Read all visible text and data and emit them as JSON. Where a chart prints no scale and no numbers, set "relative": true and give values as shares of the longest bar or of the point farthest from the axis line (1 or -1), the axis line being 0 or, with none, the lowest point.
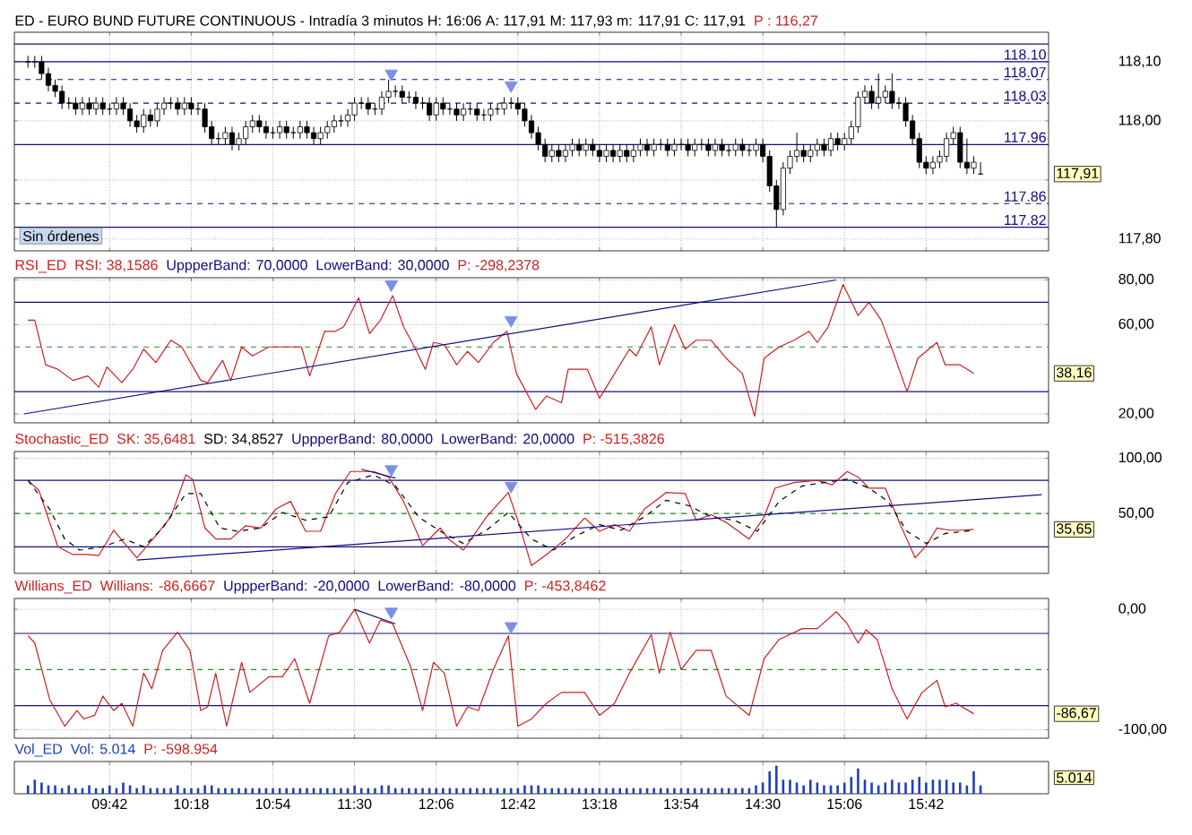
{
  "chart_data": [
    {
      "type": "candlestick",
      "title": "ED - EURO BUND FUTURE CONTINUOUS - Intradía 3 minutos  H: 16:06  A: 117,91  M: 117,93  m: 117,91  C: 117,91",
      "annotations": [
        "P : 116,27",
        "117,91",
        "Sin órdenes"
      ],
      "xlim": [
        9.0,
        16.6
      ],
      "xticks": [
        {
          "value": 9.7,
          "label": null
        },
        {
          "value": 10.3,
          "label": null
        },
        {
          "value": 10.9,
          "label": null
        },
        {
          "value": 11.5,
          "label": null
        },
        {
          "value": 12.1,
          "label": null
        },
        {
          "value": 12.7,
          "label": null
        },
        {
          "value": 13.3,
          "label": null
        },
        {
          "value": 13.9,
          "label": null
        },
        {
          "value": 14.5,
          "label": null
        },
        {
          "value": 15.1,
          "label": null
        },
        {
          "value": 15.7,
          "label": null
        }
      ],
      "ylim": [
        117.78,
        118.15
      ],
      "yticks": [
        {
          "value": 118.1,
          "label": "118,10"
        },
        {
          "value": 118.0,
          "label": "118,00"
        },
        {
          "value": 117.9,
          "label": null
        },
        {
          "value": 117.8,
          "label": "117,80"
        }
      ],
      "tick_labels": "y",
      "grid": true,
      "x": [
        9.1,
        9.15,
        9.2,
        9.25,
        9.3,
        9.35,
        9.4,
        9.45,
        9.5,
        9.55,
        9.6,
        9.65,
        9.7,
        9.75,
        9.8,
        9.85,
        9.9,
        9.95,
        10,
        10.05,
        10.1,
        10.15,
        10.2,
        10.25,
        10.3,
        10.35,
        10.4,
        10.45,
        10.5,
        10.55,
        10.6,
        10.65,
        10.7,
        10.75,
        10.8,
        10.85,
        10.9,
        10.95,
        11,
        11.05,
        11.1,
        11.15,
        11.2,
        11.25,
        11.3,
        11.35,
        11.4,
        11.45,
        11.5,
        11.55,
        11.6,
        11.65,
        11.7,
        11.75,
        11.8,
        11.85,
        11.9,
        11.95,
        12,
        12.05,
        12.1,
        12.15,
        12.2,
        12.25,
        12.3,
        12.35,
        12.4,
        12.45,
        12.5,
        12.55,
        12.6,
        12.65,
        12.7,
        12.75,
        12.8,
        12.85,
        12.9,
        12.95,
        13,
        13.05,
        13.1,
        13.15,
        13.2,
        13.25,
        13.3,
        13.35,
        13.4,
        13.45,
        13.5,
        13.55,
        13.6,
        13.65,
        13.7,
        13.75,
        13.8,
        13.85,
        13.9,
        13.95,
        14,
        14.05,
        14.1,
        14.15,
        14.2,
        14.25,
        14.3,
        14.35,
        14.4,
        14.45,
        14.5,
        14.55,
        14.6,
        14.65,
        14.7,
        14.75,
        14.8,
        14.85,
        14.9,
        14.95,
        15,
        15.05,
        15.1,
        15.15,
        15.2,
        15.25,
        15.3,
        15.35,
        15.4,
        15.45,
        15.5,
        15.55,
        15.6,
        15.65,
        15.7,
        15.75,
        15.8,
        15.85,
        15.9,
        15.95,
        16,
        16.05,
        16.1
      ],
      "ohlc": [
        [
          118.1,
          118.11,
          118.09,
          118.1
        ],
        [
          118.1,
          118.11,
          118.09,
          118.1
        ],
        [
          118.1,
          118.11,
          118.07,
          118.08
        ],
        [
          118.08,
          118.09,
          118.05,
          118.06
        ],
        [
          118.06,
          118.07,
          118.04,
          118.05
        ],
        [
          118.05,
          118.06,
          118.02,
          118.03
        ],
        [
          118.03,
          118.04,
          118.02,
          118.03
        ],
        [
          118.03,
          118.04,
          118.01,
          118.02
        ],
        [
          118.02,
          118.04,
          118.01,
          118.03
        ],
        [
          118.03,
          118.04,
          118.01,
          118.02
        ],
        [
          118.02,
          118.04,
          118.01,
          118.03
        ],
        [
          118.03,
          118.04,
          118.01,
          118.02
        ],
        [
          118.02,
          118.03,
          118.01,
          118.02
        ],
        [
          118.02,
          118.04,
          118.01,
          118.03
        ],
        [
          118.03,
          118.04,
          118.01,
          118.02
        ],
        [
          118.02,
          118.03,
          117.99,
          118.0
        ],
        [
          118.0,
          118.01,
          117.98,
          117.99
        ],
        [
          117.99,
          118.02,
          117.98,
          118.01
        ],
        [
          118.01,
          118.02,
          117.99,
          118.0
        ],
        [
          118.0,
          118.03,
          117.99,
          118.02
        ],
        [
          118.02,
          118.04,
          118.01,
          118.03
        ],
        [
          118.03,
          118.04,
          118.02,
          118.03
        ],
        [
          118.03,
          118.04,
          118.01,
          118.02
        ],
        [
          118.02,
          118.04,
          118.01,
          118.03
        ],
        [
          118.03,
          118.04,
          118.01,
          118.02
        ],
        [
          118.02,
          118.03,
          118.01,
          118.02
        ],
        [
          118.02,
          118.03,
          117.98,
          117.99
        ],
        [
          117.99,
          118.0,
          117.96,
          117.97
        ],
        [
          117.97,
          117.98,
          117.96,
          117.97
        ],
        [
          117.97,
          117.99,
          117.96,
          117.98
        ],
        [
          117.98,
          117.99,
          117.95,
          117.96
        ],
        [
          117.96,
          117.98,
          117.95,
          117.97
        ],
        [
          117.97,
          118.0,
          117.96,
          117.99
        ],
        [
          117.99,
          118.01,
          117.98,
          118.0
        ],
        [
          118.0,
          118.01,
          117.98,
          117.99
        ],
        [
          117.99,
          118.0,
          117.97,
          117.98
        ],
        [
          117.98,
          117.99,
          117.97,
          117.98
        ],
        [
          117.98,
          118.0,
          117.97,
          117.99
        ],
        [
          117.99,
          118.0,
          117.97,
          117.98
        ],
        [
          117.98,
          117.99,
          117.97,
          117.98
        ],
        [
          117.98,
          118.0,
          117.97,
          117.99
        ],
        [
          117.99,
          118.0,
          117.97,
          117.98
        ],
        [
          117.98,
          117.99,
          117.96,
          117.97
        ],
        [
          117.97,
          117.99,
          117.96,
          117.98
        ],
        [
          117.98,
          118.0,
          117.97,
          117.99
        ],
        [
          117.99,
          118.01,
          117.98,
          118.0
        ],
        [
          118.0,
          118.01,
          117.99,
          118.0
        ],
        [
          118.0,
          118.02,
          117.99,
          118.01
        ],
        [
          118.01,
          118.04,
          118.0,
          118.03
        ],
        [
          118.03,
          118.04,
          118.02,
          118.03
        ],
        [
          118.03,
          118.04,
          118.01,
          118.02
        ],
        [
          118.02,
          118.03,
          118.01,
          118.02
        ],
        [
          118.02,
          118.05,
          118.01,
          118.04
        ],
        [
          118.04,
          118.07,
          118.03,
          118.05
        ],
        [
          118.05,
          118.06,
          118.04,
          118.05
        ],
        [
          118.05,
          118.06,
          118.03,
          118.04
        ],
        [
          118.04,
          118.05,
          118.03,
          118.04
        ],
        [
          118.04,
          118.05,
          118.02,
          118.03
        ],
        [
          118.03,
          118.04,
          118.02,
          118.03
        ],
        [
          118.03,
          118.04,
          118.0,
          118.01
        ],
        [
          118.01,
          118.04,
          118.0,
          118.03
        ],
        [
          118.03,
          118.04,
          118.01,
          118.02
        ],
        [
          118.02,
          118.03,
          118.01,
          118.02
        ],
        [
          118.02,
          118.03,
          118.0,
          118.01
        ],
        [
          118.01,
          118.03,
          118.0,
          118.02
        ],
        [
          118.02,
          118.03,
          118.01,
          118.02
        ],
        [
          118.02,
          118.03,
          118.0,
          118.01
        ],
        [
          118.01,
          118.02,
          118.0,
          118.01
        ],
        [
          118.01,
          118.03,
          118.0,
          118.02
        ],
        [
          118.02,
          118.03,
          118.01,
          118.02
        ],
        [
          118.02,
          118.04,
          118.01,
          118.03
        ],
        [
          118.03,
          118.04,
          118.02,
          118.03
        ],
        [
          118.03,
          118.04,
          118.01,
          118.02
        ],
        [
          118.02,
          118.03,
          117.99,
          118.0
        ],
        [
          118.0,
          118.01,
          117.97,
          117.98
        ],
        [
          117.98,
          117.99,
          117.95,
          117.96
        ],
        [
          117.96,
          117.97,
          117.93,
          117.94
        ],
        [
          117.94,
          117.96,
          117.93,
          117.95
        ],
        [
          117.95,
          117.96,
          117.93,
          117.94
        ],
        [
          117.94,
          117.96,
          117.93,
          117.95
        ],
        [
          117.95,
          117.97,
          117.94,
          117.96
        ],
        [
          117.96,
          117.97,
          117.94,
          117.95
        ],
        [
          117.95,
          117.97,
          117.94,
          117.96
        ],
        [
          117.96,
          117.97,
          117.94,
          117.95
        ],
        [
          117.95,
          117.96,
          117.93,
          117.94
        ],
        [
          117.94,
          117.96,
          117.93,
          117.95
        ],
        [
          117.95,
          117.96,
          117.93,
          117.94
        ],
        [
          117.94,
          117.96,
          117.93,
          117.95
        ],
        [
          117.95,
          117.96,
          117.93,
          117.94
        ],
        [
          117.94,
          117.96,
          117.93,
          117.95
        ],
        [
          117.95,
          117.97,
          117.94,
          117.96
        ],
        [
          117.96,
          117.97,
          117.94,
          117.95
        ],
        [
          117.95,
          117.97,
          117.94,
          117.96
        ],
        [
          117.96,
          117.97,
          117.95,
          117.96
        ],
        [
          117.96,
          117.97,
          117.94,
          117.95
        ],
        [
          117.95,
          117.97,
          117.94,
          117.96
        ],
        [
          117.96,
          117.97,
          117.95,
          117.96
        ],
        [
          117.96,
          117.97,
          117.94,
          117.95
        ],
        [
          117.95,
          117.97,
          117.94,
          117.96
        ],
        [
          117.96,
          117.97,
          117.95,
          117.96
        ],
        [
          117.96,
          117.97,
          117.94,
          117.95
        ],
        [
          117.95,
          117.97,
          117.94,
          117.96
        ],
        [
          117.96,
          117.97,
          117.94,
          117.95
        ],
        [
          117.95,
          117.96,
          117.94,
          117.95
        ],
        [
          117.95,
          117.97,
          117.94,
          117.96
        ],
        [
          117.96,
          117.97,
          117.94,
          117.95
        ],
        [
          117.95,
          117.96,
          117.94,
          117.95
        ],
        [
          117.95,
          117.97,
          117.94,
          117.96
        ],
        [
          117.96,
          117.97,
          117.93,
          117.94
        ],
        [
          117.94,
          117.95,
          117.88,
          117.89
        ],
        [
          117.89,
          117.9,
          117.82,
          117.85
        ],
        [
          117.85,
          117.93,
          117.84,
          117.92
        ],
        [
          117.92,
          117.95,
          117.91,
          117.94
        ],
        [
          117.94,
          117.98,
          117.93,
          117.95
        ],
        [
          117.95,
          117.96,
          117.93,
          117.94
        ],
        [
          117.94,
          117.96,
          117.93,
          117.95
        ],
        [
          117.95,
          117.97,
          117.94,
          117.96
        ],
        [
          117.96,
          117.97,
          117.94,
          117.95
        ],
        [
          117.95,
          117.98,
          117.94,
          117.97
        ],
        [
          117.97,
          117.98,
          117.95,
          117.96
        ],
        [
          117.96,
          117.98,
          117.95,
          117.97
        ],
        [
          117.97,
          118.0,
          117.96,
          117.99
        ],
        [
          117.99,
          118.05,
          117.98,
          118.04
        ],
        [
          118.04,
          118.06,
          118.03,
          118.05
        ],
        [
          118.05,
          118.06,
          118.02,
          118.03
        ],
        [
          118.03,
          118.08,
          118.02,
          118.04
        ],
        [
          118.04,
          118.06,
          118.03,
          118.05
        ],
        [
          118.05,
          118.08,
          118.02,
          118.03
        ],
        [
          118.03,
          118.04,
          118.02,
          118.03
        ],
        [
          118.03,
          118.04,
          117.99,
          118.0
        ],
        [
          118.0,
          118.01,
          117.96,
          117.97
        ],
        [
          117.97,
          117.98,
          117.92,
          117.93
        ],
        [
          117.93,
          117.94,
          117.91,
          117.92
        ],
        [
          117.92,
          117.94,
          117.91,
          117.93
        ],
        [
          117.93,
          117.95,
          117.92,
          117.94
        ],
        [
          117.94,
          117.98,
          117.93,
          117.97
        ],
        [
          117.97,
          117.99,
          117.96,
          117.98
        ],
        [
          117.98,
          117.99,
          117.92,
          117.93
        ],
        [
          117.93,
          117.97,
          117.91,
          117.92
        ],
        [
          117.92,
          117.94,
          117.91,
          117.93
        ],
        [
          117.91,
          117.93,
          117.91,
          117.91
        ]
      ],
      "ref_lines": [
        {
          "axis": "y",
          "value": 118.13,
          "color": "#101080"
        },
        {
          "axis": "y",
          "value": 118.1,
          "label": "118.10",
          "color": "#101080"
        },
        {
          "axis": "y",
          "value": 118.07,
          "label": "118.07",
          "color": "#101080",
          "line_style": "dashed"
        },
        {
          "axis": "y",
          "value": 118.03,
          "label": "118.03",
          "color": "#101080",
          "line_style": "dashed"
        },
        {
          "axis": "y",
          "value": 117.96,
          "label": "117.96",
          "color": "#101080"
        },
        {
          "axis": "y",
          "value": 117.86,
          "label": "117.86",
          "color": "#101080",
          "line_style": "dashed"
        },
        {
          "axis": "y",
          "value": 117.82,
          "label": "117.82",
          "color": "#101080"
        }
      ],
      "series": [
        {
          "type": "scatter",
          "marker": "triangle",
          "color": "#7b8fe6",
          "x": [
            11.77,
            12.65
          ],
          "values": [
            118.08,
            118.06
          ]
        }
      ]
    },
    {
      "type": "line",
      "title": "RSI_ED",
      "annotations": [
        "P: -298,2378",
        "38,16"
      ],
      "xlim": [
        9.0,
        16.6
      ],
      "xticks": [
        {
          "value": 9.7,
          "label": null
        },
        {
          "value": 10.3,
          "label": null
        },
        {
          "value": 10.9,
          "label": null
        },
        {
          "value": 11.5,
          "label": null
        },
        {
          "value": 12.1,
          "label": null
        },
        {
          "value": 12.7,
          "label": null
        },
        {
          "value": 13.3,
          "label": null
        },
        {
          "value": 13.9,
          "label": null
        },
        {
          "value": 14.5,
          "label": null
        },
        {
          "value": 15.1,
          "label": null
        },
        {
          "value": 15.7,
          "label": null
        }
      ],
      "ylim": [
        16,
        81
      ],
      "yticks": [
        {
          "value": 80,
          "label": "80,00"
        },
        {
          "value": 60,
          "label": "60,00"
        },
        {
          "value": 20,
          "label": "20,00"
        }
      ],
      "tick_labels": "y",
      "grid": true,
      "ref_lines": [
        {
          "axis": "y",
          "value": 70,
          "label": "UppperBand: 70,0000",
          "color": "#101080"
        },
        {
          "axis": "y",
          "value": 30,
          "label": "LowerBand: 30,0000",
          "color": "#101080"
        },
        {
          "axis": "y",
          "value": 50,
          "color": "#2a8a2a",
          "line_style": "dashed"
        }
      ],
      "series": [
        {
          "name": "RSI: 38,1586",
          "color": "#cc2020",
          "x": [
            9.1,
            9.15,
            9.23,
            9.32,
            9.43,
            9.54,
            9.62,
            9.68,
            9.79,
            9.87,
            9.95,
            10.04,
            10.15,
            10.23,
            10.37,
            10.42,
            10.53,
            10.59,
            10.67,
            10.75,
            10.87,
            11.11,
            11.17,
            11.28,
            11.36,
            11.42,
            11.53,
            11.61,
            11.69,
            11.78,
            11.86,
            11.94,
            12.02,
            12.08,
            12.16,
            12.25,
            12.33,
            12.41,
            12.52,
            12.62,
            12.69,
            12.83,
            12.91,
            13.02,
            13.07,
            13.21,
            13.3,
            13.38,
            13.52,
            13.57,
            13.68,
            13.74,
            13.85,
            13.93,
            14.01,
            14.12,
            14.23,
            14.35,
            14.44,
            14.51,
            14.62,
            14.73,
            14.84,
            14.9,
            14.98,
            15.09,
            15.2,
            15.28,
            15.37,
            15.45,
            15.56,
            15.64,
            15.78,
            15.84,
            15.95,
            16.05
          ],
          "values": [
            62,
            62,
            42,
            40,
            35,
            37,
            32,
            41,
            34,
            40,
            49,
            43,
            53,
            50,
            35,
            34,
            44,
            35,
            50,
            46,
            50,
            50,
            37,
            57,
            57,
            59,
            72,
            56,
            62,
            73,
            59,
            50,
            40,
            52,
            51,
            42,
            48,
            43,
            52,
            57,
            38,
            22,
            28,
            25,
            40,
            40,
            27,
            35,
            49,
            46,
            59,
            42,
            60,
            49,
            53,
            53,
            45,
            38,
            19,
            45,
            50,
            53,
            57,
            52,
            59,
            78,
            64,
            70,
            62,
            49,
            30,
            45,
            52,
            42,
            42,
            38.16
          ]
        },
        {
          "type": "line",
          "color": "#101080",
          "x": [
            9.07,
            15.04
          ],
          "values": [
            20,
            80
          ]
        },
        {
          "type": "scatter",
          "marker": "triangle",
          "color": "#7b8fe6",
          "x": [
            11.77,
            12.65
          ],
          "values": [
            78,
            62
          ]
        }
      ]
    },
    {
      "type": "line",
      "title": "Stochastic_ED",
      "annotations": [
        "P: -515,3826",
        "35,65"
      ],
      "xlim": [
        9.0,
        16.6
      ],
      "xticks": [
        {
          "value": 9.7,
          "label": null
        },
        {
          "value": 10.3,
          "label": null
        },
        {
          "value": 10.9,
          "label": null
        },
        {
          "value": 11.5,
          "label": null
        },
        {
          "value": 12.1,
          "label": null
        },
        {
          "value": 12.7,
          "label": null
        },
        {
          "value": 13.3,
          "label": null
        },
        {
          "value": 13.9,
          "label": null
        },
        {
          "value": 14.5,
          "label": null
        },
        {
          "value": 15.1,
          "label": null
        },
        {
          "value": 15.7,
          "label": null
        }
      ],
      "ylim": [
        -4,
        106
      ],
      "yticks": [
        {
          "value": 100,
          "label": "100,00"
        },
        {
          "value": 50,
          "label": "50,00"
        }
      ],
      "tick_labels": "y",
      "grid": true,
      "ref_lines": [
        {
          "axis": "y",
          "value": 80,
          "label": "UppperBand: 80,0000",
          "color": "#101080"
        },
        {
          "axis": "y",
          "value": 20,
          "label": "LowerBand: 20,0000",
          "color": "#101080"
        },
        {
          "axis": "y",
          "value": 50,
          "color": "#2a8a2a",
          "line_style": "dashed"
        }
      ],
      "series": [
        {
          "name": "SK: 35,6481",
          "color": "#cc2020",
          "x": [
            9.1,
            9.18,
            9.32,
            9.43,
            9.54,
            9.62,
            9.73,
            9.81,
            9.9,
            10.04,
            10.15,
            10.26,
            10.31,
            10.4,
            10.48,
            10.59,
            10.7,
            10.81,
            10.92,
            11.03,
            11.14,
            11.25,
            11.36,
            11.47,
            11.64,
            11.75,
            11.86,
            12.0,
            12.13,
            12.19,
            12.3,
            12.47,
            12.63,
            12.71,
            12.8,
            12.91,
            13.05,
            13.19,
            13.3,
            13.41,
            13.52,
            13.63,
            13.79,
            13.93,
            14.01,
            14.12,
            14.23,
            14.4,
            14.51,
            14.59,
            14.73,
            14.9,
            15.01,
            15.12,
            15.2,
            15.28,
            15.4,
            15.51,
            15.62,
            15.7,
            15.78,
            15.87,
            15.95,
            16.05
          ],
          "values": [
            80,
            71,
            20,
            13,
            13,
            12,
            35,
            23,
            10,
            30,
            47,
            85,
            81,
            37,
            27,
            27,
            39,
            37,
            54,
            61,
            34,
            34,
            68,
            88,
            88,
            83,
            61,
            21,
            37,
            27,
            17,
            47,
            69,
            40,
            3,
            13,
            27,
            46,
            34,
            40,
            34,
            54,
            69,
            68,
            44,
            49,
            42,
            27,
            47,
            73,
            78,
            80,
            76,
            88,
            83,
            73,
            73,
            40,
            10,
            21,
            37,
            35,
            35,
            35.65
          ]
        },
        {
          "name": "SD: 34,8527",
          "color": "#000000",
          "line_style": "dashed",
          "x": [
            9.1,
            9.26,
            9.37,
            9.48,
            9.65,
            9.81,
            9.95,
            10.09,
            10.26,
            10.37,
            10.51,
            10.64,
            10.81,
            10.97,
            11.14,
            11.31,
            11.45,
            11.64,
            11.8,
            11.97,
            12.13,
            12.3,
            12.47,
            12.63,
            12.8,
            12.96,
            13.13,
            13.3,
            13.46,
            13.63,
            13.79,
            13.96,
            14.12,
            14.29,
            14.46,
            14.62,
            14.79,
            14.95,
            15.12,
            15.28,
            15.42,
            15.56,
            15.7,
            15.84,
            16.05
          ],
          "values": [
            80,
            54,
            27,
            17,
            20,
            27,
            20,
            37,
            68,
            68,
            37,
            34,
            37,
            51,
            44,
            47,
            78,
            85,
            75,
            47,
            34,
            23,
            35,
            51,
            27,
            17,
            30,
            40,
            35,
            47,
            62,
            57,
            47,
            44,
            34,
            61,
            75,
            78,
            81,
            73,
            61,
            34,
            23,
            32,
            34.85
          ]
        },
        {
          "type": "line",
          "color": "#101080",
          "x": [
            9.9,
            16.55
          ],
          "values": [
            8,
            67
          ]
        },
        {
          "type": "line",
          "color": "#101080",
          "x": [
            11.55,
            11.8
          ],
          "values": [
            90,
            82
          ]
        },
        {
          "type": "scatter",
          "marker": "triangle",
          "color": "#7b8fe6",
          "x": [
            11.77,
            12.65
          ],
          "values": [
            90,
            75
          ]
        }
      ]
    },
    {
      "type": "line",
      "title": "Willians_ED",
      "annotations": [
        "P: -453,8462",
        "-86,67"
      ],
      "xlim": [
        9.0,
        16.6
      ],
      "xticks": [
        {
          "value": 9.7,
          "label": null
        },
        {
          "value": 10.3,
          "label": null
        },
        {
          "value": 10.9,
          "label": null
        },
        {
          "value": 11.5,
          "label": null
        },
        {
          "value": 12.1,
          "label": null
        },
        {
          "value": 12.7,
          "label": null
        },
        {
          "value": 13.3,
          "label": null
        },
        {
          "value": 13.9,
          "label": null
        },
        {
          "value": 14.5,
          "label": null
        },
        {
          "value": 15.1,
          "label": null
        },
        {
          "value": 15.7,
          "label": null
        }
      ],
      "ylim": [
        -107,
        9
      ],
      "yticks": [
        {
          "value": 0,
          "label": "0,00"
        },
        {
          "value": -100,
          "label": "-100,00"
        }
      ],
      "tick_labels": "y",
      "grid": true,
      "ref_lines": [
        {
          "axis": "y",
          "value": -20,
          "label": "UppperBand: -20,0000",
          "color": "#101080"
        },
        {
          "axis": "y",
          "value": -80,
          "label": "LowerBand: -80,0000",
          "color": "#101080"
        },
        {
          "axis": "y",
          "value": -50,
          "color": "#2a8a2a",
          "line_style": "dashed"
        }
      ],
      "series": [
        {
          "name": "Willians: -86,6667",
          "color": "#cc2020",
          "x": [
            9.1,
            9.15,
            9.26,
            9.37,
            9.46,
            9.51,
            9.59,
            9.65,
            9.73,
            9.79,
            9.87,
            9.95,
            10.01,
            10.09,
            10.2,
            10.29,
            10.37,
            10.42,
            10.48,
            10.56,
            10.67,
            10.73,
            10.87,
            10.97,
            11.06,
            11.17,
            11.31,
            11.39,
            11.5,
            11.61,
            11.69,
            11.78,
            11.91,
            12.0,
            12.08,
            12.16,
            12.25,
            12.33,
            12.41,
            12.52,
            12.63,
            12.7,
            12.8,
            12.91,
            13.02,
            13.19,
            13.3,
            13.41,
            13.52,
            13.68,
            13.74,
            13.82,
            13.9,
            14.01,
            14.12,
            14.23,
            14.4,
            14.51,
            14.62,
            14.79,
            14.9,
            15.04,
            15.12,
            15.2,
            15.26,
            15.34,
            15.45,
            15.56,
            15.67,
            15.78,
            15.84,
            15.92,
            16.05
          ],
          "values": [
            -22,
            -28,
            -75,
            -97,
            -84,
            -91,
            -88,
            -72,
            -84,
            -78,
            -97,
            -53,
            -66,
            -34,
            -19,
            -34,
            -84,
            -81,
            -53,
            -97,
            -44,
            -69,
            -56,
            -56,
            -41,
            -78,
            -22,
            -19,
            0,
            -28,
            -9,
            -12,
            -47,
            -84,
            -44,
            -53,
            -97,
            -81,
            -84,
            -50,
            -22,
            -97,
            -91,
            -78,
            -69,
            -69,
            -88,
            -78,
            -53,
            -21,
            -53,
            -19,
            -50,
            -34,
            -34,
            -72,
            -88,
            -41,
            -25,
            -16,
            -16,
            -2,
            -12,
            -28,
            -17,
            -25,
            -66,
            -91,
            -69,
            -59,
            -81,
            -78,
            -86.67
          ]
        },
        {
          "type": "line",
          "color": "#101080",
          "x": [
            11.5,
            11.8
          ],
          "values": [
            0,
            -12
          ]
        },
        {
          "type": "scatter",
          "marker": "triangle",
          "color": "#7b8fe6",
          "x": [
            11.77,
            12.65
          ],
          "values": [
            -2,
            -14
          ]
        }
      ]
    },
    {
      "type": "bar",
      "title": "Vol_ED",
      "relative": true,
      "annotations": [
        "P: -598.954",
        "5.014"
      ],
      "xlim": [
        9.0,
        16.6
      ],
      "xticks": [
        {
          "value": 9.7,
          "label": "09:42"
        },
        {
          "value": 10.3,
          "label": "10:18"
        },
        {
          "value": 10.9,
          "label": "10:54"
        },
        {
          "value": 11.5,
          "label": "11:30"
        },
        {
          "value": 12.1,
          "label": "12:06"
        },
        {
          "value": 12.7,
          "label": "12:42"
        },
        {
          "value": 13.3,
          "label": "13:18"
        },
        {
          "value": 13.9,
          "label": "13:54"
        },
        {
          "value": 14.5,
          "label": "14:30"
        },
        {
          "value": 15.1,
          "label": "15:06"
        },
        {
          "value": 15.7,
          "label": "15:42"
        }
      ],
      "tick_labels": "x",
      "grid": "x",
      "x": [
        9.1,
        9.15,
        9.2,
        9.25,
        9.3,
        9.35,
        9.4,
        9.45,
        9.5,
        9.55,
        9.6,
        9.65,
        9.7,
        9.75,
        9.8,
        9.85,
        9.9,
        9.95,
        10,
        10.05,
        10.1,
        10.15,
        10.2,
        10.25,
        10.3,
        10.35,
        10.4,
        10.45,
        10.5,
        10.55,
        10.6,
        10.65,
        10.7,
        10.75,
        10.8,
        10.85,
        10.9,
        10.95,
        11,
        11.05,
        11.1,
        11.15,
        11.2,
        11.25,
        11.3,
        11.35,
        11.4,
        11.45,
        11.5,
        11.55,
        11.6,
        11.65,
        11.7,
        11.75,
        11.8,
        11.85,
        11.9,
        11.95,
        12,
        12.05,
        12.1,
        12.15,
        12.2,
        12.25,
        12.3,
        12.35,
        12.4,
        12.45,
        12.5,
        12.55,
        12.6,
        12.65,
        12.7,
        12.75,
        12.8,
        12.85,
        12.9,
        12.95,
        13,
        13.05,
        13.1,
        13.15,
        13.2,
        13.25,
        13.3,
        13.35,
        13.4,
        13.45,
        13.5,
        13.55,
        13.6,
        13.65,
        13.7,
        13.75,
        13.8,
        13.85,
        13.9,
        13.95,
        14,
        14.05,
        14.1,
        14.15,
        14.2,
        14.25,
        14.3,
        14.35,
        14.4,
        14.45,
        14.5,
        14.55,
        14.6,
        14.65,
        14.7,
        14.75,
        14.8,
        14.85,
        14.9,
        14.95,
        15,
        15.05,
        15.1,
        15.15,
        15.2,
        15.25,
        15.3,
        15.35,
        15.4,
        15.45,
        15.5,
        15.55,
        15.6,
        15.65,
        15.7,
        15.75,
        15.8,
        15.85,
        15.9,
        15.95,
        16,
        16.05,
        16.1
      ],
      "series": [
        {
          "name": "Vol: 5.014",
          "color": "#1f3fbf",
          "values": [
            0.3,
            0.5,
            0.4,
            0.3,
            0.3,
            0.2,
            0.3,
            0.2,
            0.2,
            0.3,
            0.2,
            0.2,
            0.3,
            0.2,
            0.4,
            0.3,
            0.2,
            0.3,
            0.2,
            0.2,
            0.2,
            0.2,
            0.3,
            0.2,
            0.2,
            0.2,
            0.3,
            0.3,
            0.2,
            0.2,
            0.2,
            0.2,
            0.2,
            0.2,
            0.2,
            0.2,
            0.2,
            0.2,
            0.2,
            0.2,
            0.2,
            0.2,
            0.2,
            0.2,
            0.2,
            0.2,
            0.2,
            0.2,
            0.3,
            0.2,
            0.2,
            0.2,
            0.3,
            0.3,
            0.2,
            0.2,
            0.2,
            0.2,
            0.2,
            0.2,
            0.2,
            0.2,
            0.2,
            0.2,
            0.2,
            0.2,
            0.2,
            0.2,
            0.2,
            0.2,
            0.2,
            0.2,
            0.2,
            0.3,
            0.3,
            0.3,
            0.2,
            0.2,
            0.2,
            0.2,
            0.2,
            0.2,
            0.2,
            0.2,
            0.2,
            0.2,
            0.2,
            0.2,
            0.2,
            0.2,
            0.2,
            0.2,
            0.2,
            0.2,
            0.2,
            0.2,
            0.2,
            0.2,
            0.2,
            0.2,
            0.2,
            0.2,
            0.2,
            0.2,
            0.2,
            0.2,
            0.2,
            0.3,
            0.4,
            0.8,
            1.0,
            0.5,
            0.5,
            0.4,
            0.3,
            0.5,
            0.4,
            0.3,
            0.3,
            0.3,
            0.4,
            0.6,
            0.9,
            0.5,
            0.4,
            0.3,
            0.4,
            0.5,
            0.4,
            0.4,
            0.5,
            0.6,
            0.4,
            0.5,
            0.5,
            0.5,
            0.4,
            0.4,
            0.3,
            0.8,
            0.3
          ]
        }
      ]
    }
  ]
}
